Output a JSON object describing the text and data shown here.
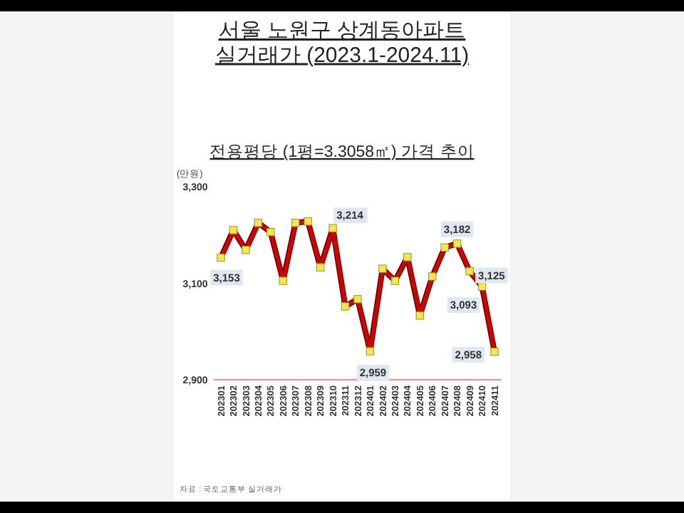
{
  "chart_data": {
    "type": "line",
    "title": "서울 노원구 상계동아파트 실거래가 (2023.1-2024.11)",
    "subtitle": "전용평당 (1평=3.3058㎡) 가격 추이",
    "ylabel": "(만원)",
    "categories": [
      "202301",
      "202302",
      "202303",
      "202304",
      "202305",
      "202306",
      "202307",
      "202308",
      "202309",
      "202310",
      "202311",
      "202312",
      "202401",
      "202402",
      "202403",
      "202404",
      "202405",
      "202406",
      "202407",
      "202408",
      "202409",
      "202410",
      "202411"
    ],
    "series": [
      {
        "color": "#d40000",
        "values": [
          3153,
          3210,
          3169,
          3225,
          3206,
          3105,
          3225,
          3228,
          3133,
          3214,
          3052,
          3067,
          2959,
          3130,
          3105,
          3154,
          3033,
          3114,
          3174,
          3182,
          3125,
          3093,
          2958
        ],
        "value_labels": [
          "3,153",
          null,
          null,
          null,
          null,
          null,
          null,
          null,
          null,
          "3,214",
          null,
          null,
          "2,959",
          null,
          null,
          null,
          null,
          null,
          null,
          "3,182",
          "3,125",
          "3,093",
          "2,958"
        ]
      }
    ],
    "ylim": [
      2900,
      3300
    ],
    "yticks": [
      {
        "value": 2900,
        "label": "2,900"
      },
      {
        "value": 3100,
        "label": "3,100"
      },
      {
        "value": 3300,
        "label": "3,300"
      }
    ],
    "marker": "square",
    "line_style": "solid",
    "grid": false,
    "annotations": [
      "자료 : 국토교통부 실거래가"
    ]
  }
}
